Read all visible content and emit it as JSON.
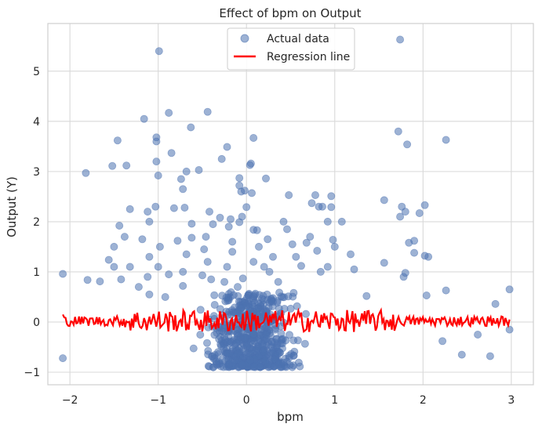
{
  "chart_data": {
    "type": "scatter",
    "title": "Effect of bpm on Output",
    "xlabel": "bpm",
    "ylabel": "Output (Y)",
    "xlim": [
      -2.25,
      3.25
    ],
    "ylim": [
      -1.25,
      5.95
    ],
    "xticks": [
      -2,
      -1,
      0,
      1,
      2,
      3
    ],
    "xtick_labels": [
      "−2",
      "−1",
      "0",
      "1",
      "2",
      "3"
    ],
    "yticks": [
      -1,
      0,
      1,
      2,
      3,
      4,
      5
    ],
    "ytick_labels": [
      "−1",
      "0",
      "1",
      "2",
      "3",
      "4",
      "5"
    ],
    "grid": true,
    "legend_position": "top-center",
    "series": [
      {
        "name": "Actual data",
        "kind": "scatter",
        "color": "#4c72b0",
        "alpha": 0.55,
        "points": [
          [
            -2.08,
            0.96
          ],
          [
            -2.08,
            -0.72
          ],
          [
            -1.82,
            2.97
          ],
          [
            -1.8,
            0.84
          ],
          [
            -1.66,
            0.81
          ],
          [
            -1.52,
            3.11
          ],
          [
            -1.46,
            3.62
          ],
          [
            -1.36,
            3.12
          ],
          [
            -1.32,
            2.25
          ],
          [
            -1.44,
            1.92
          ],
          [
            -1.38,
            1.7
          ],
          [
            -1.5,
            1.5
          ],
          [
            -1.56,
            1.24
          ],
          [
            -1.5,
            1.1
          ],
          [
            -1.32,
            1.1
          ],
          [
            -1.22,
            0.7
          ],
          [
            -1.42,
            0.85
          ],
          [
            -1.16,
            4.05
          ],
          [
            -1.12,
            2.2
          ],
          [
            -1.1,
            2.0
          ],
          [
            -1.18,
            1.65
          ],
          [
            -1.1,
            1.3
          ],
          [
            -1.12,
            0.9
          ],
          [
            -1.1,
            0.55
          ],
          [
            -1.02,
            3.68
          ],
          [
            -1.02,
            3.6
          ],
          [
            -1.02,
            3.2
          ],
          [
            -1.0,
            2.92
          ],
          [
            -1.03,
            2.3
          ],
          [
            -0.98,
            1.5
          ],
          [
            -1.0,
            1.1
          ],
          [
            -0.92,
            0.5
          ],
          [
            -0.88,
            0.95
          ],
          [
            -0.99,
            5.4
          ],
          [
            -0.88,
            4.17
          ],
          [
            -0.85,
            3.37
          ],
          [
            -0.74,
            2.85
          ],
          [
            -0.72,
            2.65
          ],
          [
            -0.68,
            3.0
          ],
          [
            -0.63,
            3.88
          ],
          [
            -0.82,
            2.27
          ],
          [
            -0.7,
            2.28
          ],
          [
            -0.62,
            1.96
          ],
          [
            -0.62,
            1.68
          ],
          [
            -0.78,
            1.62
          ],
          [
            -0.68,
            1.35
          ],
          [
            -0.72,
            1.0
          ],
          [
            -0.72,
            0.72
          ],
          [
            -0.54,
            3.03
          ],
          [
            -0.44,
            4.19
          ],
          [
            -0.46,
            1.7
          ],
          [
            -0.42,
            2.2
          ],
          [
            -0.38,
            1.95
          ],
          [
            -0.48,
            1.45
          ],
          [
            -0.44,
            1.2
          ],
          [
            -0.5,
            0.93
          ],
          [
            -0.4,
            0.85
          ],
          [
            -0.3,
            2.08
          ],
          [
            -0.28,
            3.25
          ],
          [
            -0.22,
            3.49
          ],
          [
            -0.18,
            2.05
          ],
          [
            -0.2,
            1.9
          ],
          [
            -0.16,
            1.6
          ],
          [
            -0.16,
            1.4
          ],
          [
            -0.22,
            1.1
          ],
          [
            -0.25,
            0.8
          ],
          [
            -0.08,
            1.99
          ],
          [
            -0.06,
            2.6
          ],
          [
            -0.08,
            2.87
          ],
          [
            -0.08,
            2.72
          ],
          [
            -0.02,
            2.62
          ],
          [
            -0.05,
            2.1
          ],
          [
            0.0,
            2.29
          ],
          [
            -0.04,
            0.87
          ],
          [
            -0.1,
            0.7
          ],
          [
            0.05,
            3.16
          ],
          [
            0.04,
            3.13
          ],
          [
            0.06,
            2.57
          ],
          [
            0.08,
            3.67
          ],
          [
            0.08,
            1.84
          ],
          [
            0.12,
            1.83
          ],
          [
            0.14,
            1.5
          ],
          [
            0.08,
            1.2
          ],
          [
            0.2,
            1.1
          ],
          [
            0.22,
            2.86
          ],
          [
            0.24,
            1.65
          ],
          [
            0.3,
            1.3
          ],
          [
            0.26,
            1.0
          ],
          [
            0.36,
            0.8
          ],
          [
            0.42,
            2.0
          ],
          [
            0.46,
            1.85
          ],
          [
            0.48,
            2.53
          ],
          [
            0.52,
            1.55
          ],
          [
            0.56,
            1.3
          ],
          [
            0.62,
            1.12
          ],
          [
            0.68,
            1.58
          ],
          [
            0.74,
            2.37
          ],
          [
            0.72,
            1.7
          ],
          [
            0.78,
            2.53
          ],
          [
            0.82,
            2.3
          ],
          [
            0.8,
            1.42
          ],
          [
            0.84,
            1.0
          ],
          [
            0.86,
            2.3
          ],
          [
            0.92,
            2.0
          ],
          [
            0.96,
            2.29
          ],
          [
            0.96,
            2.51
          ],
          [
            0.98,
            1.64
          ],
          [
            1.0,
            1.5
          ],
          [
            0.92,
            1.1
          ],
          [
            1.08,
            2.0
          ],
          [
            1.18,
            1.35
          ],
          [
            1.22,
            1.05
          ],
          [
            1.36,
            0.52
          ],
          [
            1.56,
            2.43
          ],
          [
            1.56,
            1.18
          ],
          [
            1.72,
            3.8
          ],
          [
            1.74,
            5.63
          ],
          [
            1.76,
            2.3
          ],
          [
            1.74,
            2.1
          ],
          [
            1.8,
            2.2
          ],
          [
            1.82,
            3.54
          ],
          [
            1.84,
            1.58
          ],
          [
            1.8,
            0.98
          ],
          [
            1.78,
            0.9
          ],
          [
            1.9,
            1.62
          ],
          [
            1.9,
            1.38
          ],
          [
            1.96,
            2.17
          ],
          [
            2.02,
            2.33
          ],
          [
            2.02,
            1.32
          ],
          [
            2.06,
            1.3
          ],
          [
            2.04,
            0.53
          ],
          [
            2.26,
            3.63
          ],
          [
            2.26,
            0.63
          ],
          [
            2.82,
            0.36
          ],
          [
            2.98,
            0.65
          ],
          [
            2.62,
            -0.25
          ],
          [
            2.76,
            -0.68
          ],
          [
            2.98,
            -0.15
          ],
          [
            2.44,
            -0.65
          ],
          [
            2.22,
            -0.38
          ]
        ],
        "dense_band": {
          "x_range": [
            -1.9,
            2.2
          ],
          "y_range": [
            -0.9,
            0.6
          ],
          "count": 620
        }
      },
      {
        "name": "Regression line",
        "kind": "line",
        "color": "#ff0000",
        "x_range": [
          -2.08,
          2.98
        ],
        "y_center": 0.02,
        "y_spread_dense": 0.22,
        "y_spread_sparse": 0.1
      }
    ]
  }
}
